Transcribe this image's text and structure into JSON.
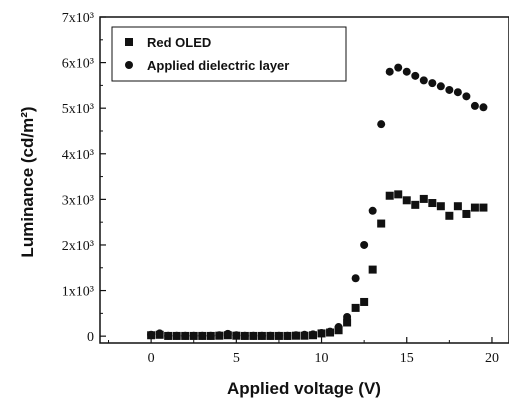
{
  "chart_data": {
    "type": "scatter",
    "xlabel": "Applied voltage (V)",
    "ylabel": "Luminance (cd/m²)",
    "xlim": [
      -3,
      21
    ],
    "ylim": [
      -150,
      7000
    ],
    "x_ticks": [
      0,
      5,
      10,
      15,
      20
    ],
    "x_tick_labels": [
      "0",
      "5",
      "10",
      "15",
      "20"
    ],
    "y_ticks": [
      0,
      1000,
      2000,
      3000,
      4000,
      5000,
      6000,
      7000
    ],
    "y_tick_labels": [
      "0",
      "1x10³",
      "2x10³",
      "3x10³",
      "4x10³",
      "5x10³",
      "6x10³",
      "7x10³"
    ],
    "legend_position": "top-left",
    "grid": false,
    "series": [
      {
        "name": "Red OLED",
        "marker": "square",
        "color": "#111111",
        "points": [
          [
            0,
            20
          ],
          [
            0.5,
            30
          ],
          [
            1,
            5
          ],
          [
            1.5,
            5
          ],
          [
            2,
            5
          ],
          [
            2.5,
            5
          ],
          [
            3,
            5
          ],
          [
            3.5,
            5
          ],
          [
            4,
            10
          ],
          [
            4.5,
            20
          ],
          [
            5,
            10
          ],
          [
            5.5,
            5
          ],
          [
            6,
            5
          ],
          [
            6.5,
            5
          ],
          [
            7,
            5
          ],
          [
            7.5,
            5
          ],
          [
            8,
            5
          ],
          [
            8.5,
            10
          ],
          [
            9,
            10
          ],
          [
            9.5,
            20
          ],
          [
            10,
            60
          ],
          [
            10.5,
            80
          ],
          [
            11,
            130
          ],
          [
            11.5,
            300
          ],
          [
            12,
            620
          ],
          [
            12.5,
            750
          ],
          [
            13,
            1460
          ],
          [
            13.5,
            2470
          ],
          [
            14,
            3080
          ],
          [
            14.5,
            3110
          ],
          [
            15,
            2980
          ],
          [
            15.5,
            2880
          ],
          [
            16,
            3010
          ],
          [
            16.5,
            2920
          ],
          [
            17,
            2850
          ],
          [
            17.5,
            2640
          ],
          [
            18,
            2850
          ],
          [
            18.5,
            2680
          ],
          [
            19,
            2820
          ],
          [
            19.5,
            2820
          ]
        ]
      },
      {
        "name": "Applied dielectric layer",
        "marker": "circle",
        "color": "#111111",
        "points": [
          [
            0,
            30
          ],
          [
            0.5,
            60
          ],
          [
            1,
            10
          ],
          [
            1.5,
            10
          ],
          [
            2,
            10
          ],
          [
            2.5,
            10
          ],
          [
            3,
            10
          ],
          [
            3.5,
            10
          ],
          [
            4,
            20
          ],
          [
            4.5,
            50
          ],
          [
            5,
            20
          ],
          [
            5.5,
            10
          ],
          [
            6,
            10
          ],
          [
            6.5,
            10
          ],
          [
            7,
            10
          ],
          [
            7.5,
            10
          ],
          [
            8,
            10
          ],
          [
            8.5,
            20
          ],
          [
            9,
            30
          ],
          [
            9.5,
            40
          ],
          [
            10,
            70
          ],
          [
            10.5,
            100
          ],
          [
            11,
            200
          ],
          [
            11.5,
            420
          ],
          [
            12,
            1270
          ],
          [
            12.5,
            2000
          ],
          [
            13,
            2750
          ],
          [
            13.5,
            4650
          ],
          [
            14,
            5800
          ],
          [
            14.5,
            5890
          ],
          [
            15,
            5800
          ],
          [
            15.5,
            5710
          ],
          [
            16,
            5610
          ],
          [
            16.5,
            5550
          ],
          [
            17,
            5480
          ],
          [
            17.5,
            5400
          ],
          [
            18,
            5350
          ],
          [
            18.5,
            5260
          ],
          [
            19,
            5050
          ],
          [
            19.5,
            5020
          ]
        ]
      }
    ]
  }
}
